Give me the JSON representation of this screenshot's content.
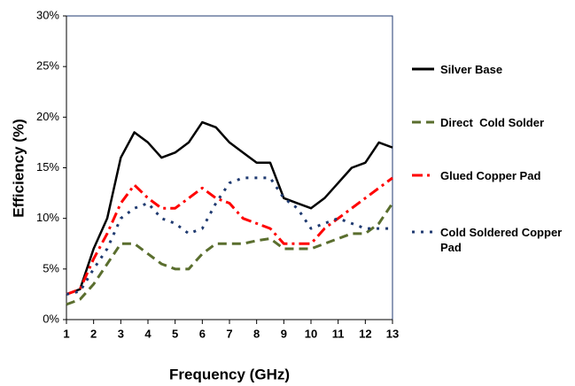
{
  "chart_data": {
    "type": "line",
    "x_label": "Frequency (GHz)",
    "y_label": "Efficiency (%)",
    "x": [
      1,
      1.5,
      2,
      2.5,
      3,
      3.5,
      4,
      4.5,
      5,
      5.5,
      6,
      6.5,
      7,
      7.5,
      8,
      8.5,
      9,
      9.5,
      10,
      10.5,
      11,
      11.5,
      12,
      12.5,
      13
    ],
    "series": [
      {
        "name": "Silver Base",
        "color": "#000000",
        "linestyle": "solid",
        "values": [
          2.5,
          3,
          7,
          10,
          16,
          18.5,
          17.5,
          16,
          16.5,
          17.5,
          19.5,
          19,
          17.5,
          16.5,
          15.5,
          15.5,
          12,
          11.5,
          11,
          12,
          13.5,
          15,
          15.5,
          17.5,
          17
        ]
      },
      {
        "name": "Direct  Cold Solder",
        "color": "#5a6e2e",
        "linestyle": "dashed",
        "values": [
          1.5,
          2,
          3.5,
          5.5,
          7.5,
          7.5,
          6.5,
          5.5,
          5,
          5,
          6.5,
          7.5,
          7.5,
          7.5,
          7.8,
          8,
          7,
          7,
          7,
          7.5,
          8,
          8.5,
          8.5,
          9.5,
          11.5
        ]
      },
      {
        "name": "Glued Copper Pad",
        "color": "#ff0000",
        "linestyle": "dashdot",
        "values": [
          2.5,
          3,
          6,
          8.5,
          11.5,
          13.3,
          12,
          11,
          11,
          12,
          13,
          12,
          11.5,
          10,
          9.5,
          9,
          7.5,
          7.5,
          7.5,
          9,
          10,
          11,
          12,
          13,
          14
        ]
      },
      {
        "name": "Cold Soldered Copper Pad",
        "color": "#1f3a70",
        "linestyle": "dotted",
        "values": [
          2.5,
          2.8,
          5,
          7,
          10,
          11,
          11.5,
          10,
          9.5,
          8.5,
          9,
          11.5,
          13.5,
          14,
          14,
          14,
          12,
          11,
          9,
          9.5,
          10,
          9.5,
          9,
          9,
          9
        ]
      }
    ],
    "xlim": [
      1,
      13
    ],
    "xticks": [
      1,
      2,
      3,
      4,
      5,
      6,
      7,
      8,
      9,
      10,
      11,
      12,
      13
    ],
    "ylim": [
      0,
      30
    ],
    "yticks": [
      {
        "value": 0,
        "label": "0%"
      },
      {
        "value": 5,
        "label": "5%"
      },
      {
        "value": 10,
        "label": "10%"
      },
      {
        "value": 15,
        "label": "15%"
      },
      {
        "value": 20,
        "label": "20%"
      },
      {
        "value": 25,
        "label": "25%"
      },
      {
        "value": 30,
        "label": "30%"
      }
    ],
    "legend": "right",
    "grid": false
  }
}
